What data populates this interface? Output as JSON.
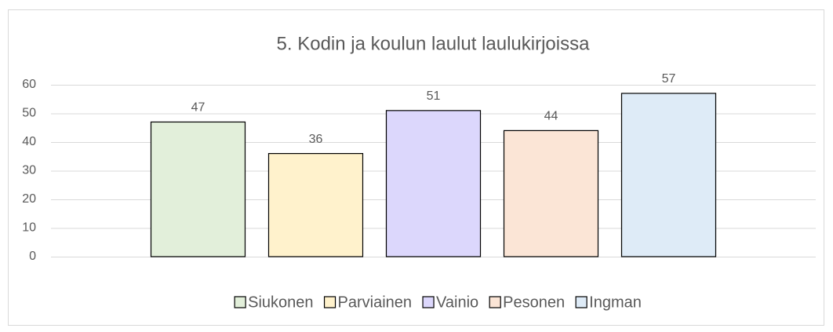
{
  "chart_data": {
    "type": "bar",
    "title": "5. Kodin ja koulun laulut laulukirjoissa",
    "categories": [
      null
    ],
    "series": [
      {
        "name": "Siukonen",
        "color": "#e2efda",
        "values": [
          47
        ]
      },
      {
        "name": "Parviainen",
        "color": "#fff2cc",
        "values": [
          36
        ]
      },
      {
        "name": "Vainio",
        "color": "#dcd7fc",
        "values": [
          51
        ]
      },
      {
        "name": "Pesonen",
        "color": "#fbe5d6",
        "values": [
          44
        ]
      },
      {
        "name": "Ingman",
        "color": "#deebf7",
        "values": [
          57
        ]
      }
    ],
    "ylim": [
      0,
      60
    ],
    "yticks": [
      0,
      10,
      20,
      30,
      40,
      50,
      60
    ],
    "grid": true,
    "legend": "bottom"
  }
}
